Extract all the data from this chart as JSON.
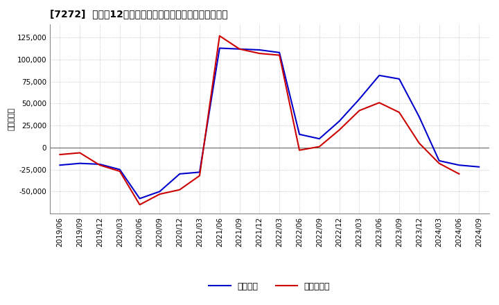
{
  "title": "[7272]  利益だ12か月移動合計の対前年同期増減額の推移",
  "ylabel": "（百万円）",
  "legend_blue": "経常利益",
  "legend_red": "当期純利益",
  "background_color": "#ffffff",
  "grid_color": "#aaaaaa",
  "dates": [
    "2019/06",
    "2019/09",
    "2019/12",
    "2020/03",
    "2020/06",
    "2020/09",
    "2020/12",
    "2021/03",
    "2021/06",
    "2021/09",
    "2021/12",
    "2022/03",
    "2022/06",
    "2022/09",
    "2022/12",
    "2023/03",
    "2023/06",
    "2023/09",
    "2023/12",
    "2024/03",
    "2024/06",
    "2024/09"
  ],
  "keijo_rieki": [
    -20000,
    -18000,
    -19000,
    -25000,
    -58000,
    -50000,
    -30000,
    -28000,
    113000,
    112000,
    111000,
    108000,
    15000,
    10000,
    30000,
    55000,
    82000,
    78000,
    35000,
    -15000,
    -20000,
    -22000
  ],
  "touki_junieki": [
    -8000,
    -6000,
    -20000,
    -27000,
    -65000,
    -53000,
    -48000,
    -32000,
    127000,
    112000,
    107000,
    105000,
    -3000,
    1000,
    20000,
    42000,
    51000,
    40000,
    5000,
    -18000,
    -30000,
    null
  ],
  "ylim": [
    -75000,
    140000
  ],
  "yticks": [
    -50000,
    -25000,
    0,
    25000,
    50000,
    75000,
    100000,
    125000
  ],
  "line_color_blue": "#0000cc",
  "line_color_red": "#cc0000",
  "line_width": 1.5,
  "title_fontsize": 10,
  "tick_fontsize": 7.5,
  "ylabel_fontsize": 8,
  "legend_fontsize": 9
}
